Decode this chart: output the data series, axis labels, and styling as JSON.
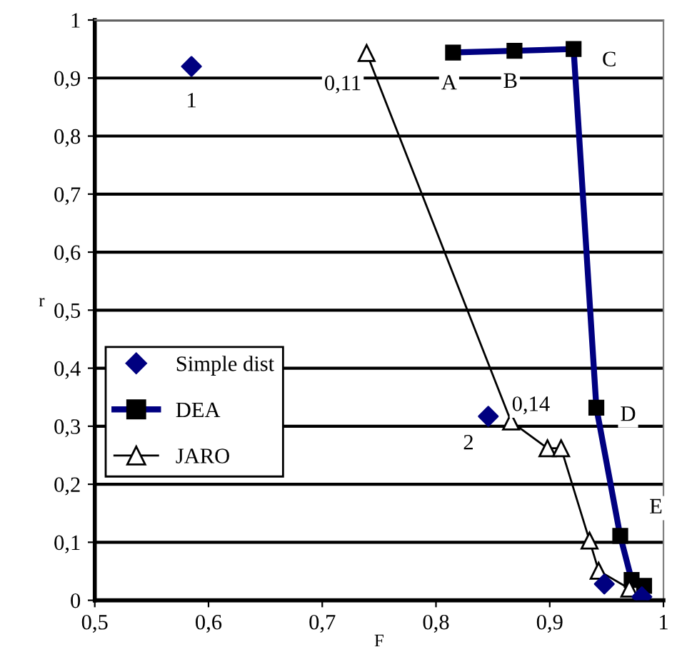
{
  "chart_data": {
    "type": "line",
    "xlabel": "F",
    "ylabel": "r",
    "xlim": [
      0.5,
      1
    ],
    "xticks": [
      {
        "value": 0.5,
        "label": "0,5"
      },
      {
        "value": 0.6,
        "label": "0,6"
      },
      {
        "value": 0.7,
        "label": "0,7"
      },
      {
        "value": 0.8,
        "label": "0,8"
      },
      {
        "value": 0.9,
        "label": "0,9"
      },
      1
    ],
    "ylim": [
      0,
      1
    ],
    "yticks": [
      0,
      {
        "value": 0.1,
        "label": "0,1"
      },
      {
        "value": 0.2,
        "label": "0,2"
      },
      {
        "value": 0.3,
        "label": "0,3"
      },
      {
        "value": 0.4,
        "label": "0,4"
      },
      {
        "value": 0.5,
        "label": "0,5"
      },
      {
        "value": 0.6,
        "label": "0,6"
      },
      {
        "value": 0.7,
        "label": "0,7"
      },
      {
        "value": 0.8,
        "label": "0,8"
      },
      {
        "value": 0.9,
        "label": "0,9"
      },
      1
    ],
    "grid": "y",
    "legend": "center left",
    "series": [
      {
        "name": "Simple dist",
        "type": "scatter",
        "marker": "diamond",
        "color": "#000080",
        "x": [
          0.585,
          0.846,
          0.948,
          0.981
        ],
        "values": [
          0.92,
          0.317,
          0.028,
          0.006
        ]
      },
      {
        "name": "DEA",
        "marker": "square",
        "color": "#000080",
        "x": [
          0.815,
          0.869,
          0.921,
          0.941,
          0.962,
          0.972,
          0.983
        ],
        "values": [
          0.944,
          0.947,
          0.95,
          0.332,
          0.111,
          0.035,
          0.025
        ]
      },
      {
        "name": "JARO",
        "marker": "triangle",
        "color": "#000000",
        "x": [
          0.739,
          0.866,
          0.898,
          0.91,
          0.935,
          0.943,
          0.97
        ],
        "values": [
          0.943,
          0.308,
          0.262,
          0.262,
          0.103,
          0.051,
          0.02
        ]
      }
    ],
    "annotations": [
      {
        "text": "1",
        "x": 0.585,
        "y": 0.92
      },
      {
        "text": "0,11",
        "x": 0.739,
        "y": 0.943
      },
      {
        "text": "A",
        "x": 0.815,
        "y": 0.944
      },
      {
        "text": "B",
        "x": 0.869,
        "y": 0.947
      },
      {
        "text": "C",
        "x": 0.921,
        "y": 0.95
      },
      {
        "text": "0,14",
        "x": 0.866,
        "y": 0.308
      },
      {
        "text": "2",
        "x": 0.846,
        "y": 0.317
      },
      {
        "text": "D",
        "x": 0.941,
        "y": 0.332
      },
      {
        "text": "E",
        "x": 0.962,
        "y": 0.111
      }
    ]
  }
}
